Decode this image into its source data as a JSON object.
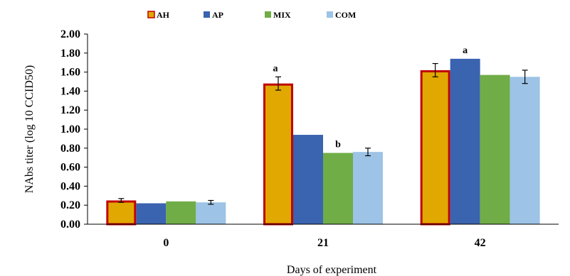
{
  "chart_data": {
    "type": "bar",
    "categories": [
      "0",
      "21",
      "42"
    ],
    "series": [
      {
        "name": "AH",
        "color": "#E0A800",
        "outline": "#C00000",
        "values": [
          0.25,
          1.48,
          1.62
        ],
        "errors": [
          0.02,
          0.07,
          0.07
        ]
      },
      {
        "name": "AP",
        "color": "#3A63B0",
        "values": [
          0.22,
          0.94,
          1.74
        ],
        "errors": [
          null,
          null,
          null
        ]
      },
      {
        "name": "MIX",
        "color": "#70AD47",
        "values": [
          0.24,
          0.75,
          1.57
        ],
        "errors": [
          null,
          null,
          null
        ]
      },
      {
        "name": "COM",
        "color": "#9DC3E6",
        "values": [
          0.23,
          0.76,
          1.55
        ],
        "errors": [
          0.02,
          0.04,
          0.07
        ]
      }
    ],
    "annotations": [
      {
        "text": "a",
        "category": 1,
        "series": 0
      },
      {
        "text": "b",
        "category": 1,
        "series": 2
      },
      {
        "text": "a",
        "category": 2,
        "series": 1
      }
    ],
    "ylim": [
      0,
      2.0
    ],
    "yticks": [
      "0.00",
      "0.20",
      "0.40",
      "0.60",
      "0.80",
      "1.00",
      "1.20",
      "1.40",
      "1.60",
      "1.80",
      "2.00"
    ],
    "xlabel": "Days of experiment",
    "ylabel": "NAbs titer (log 10 CCID50)",
    "legend_position": "top-left",
    "grid": false
  }
}
